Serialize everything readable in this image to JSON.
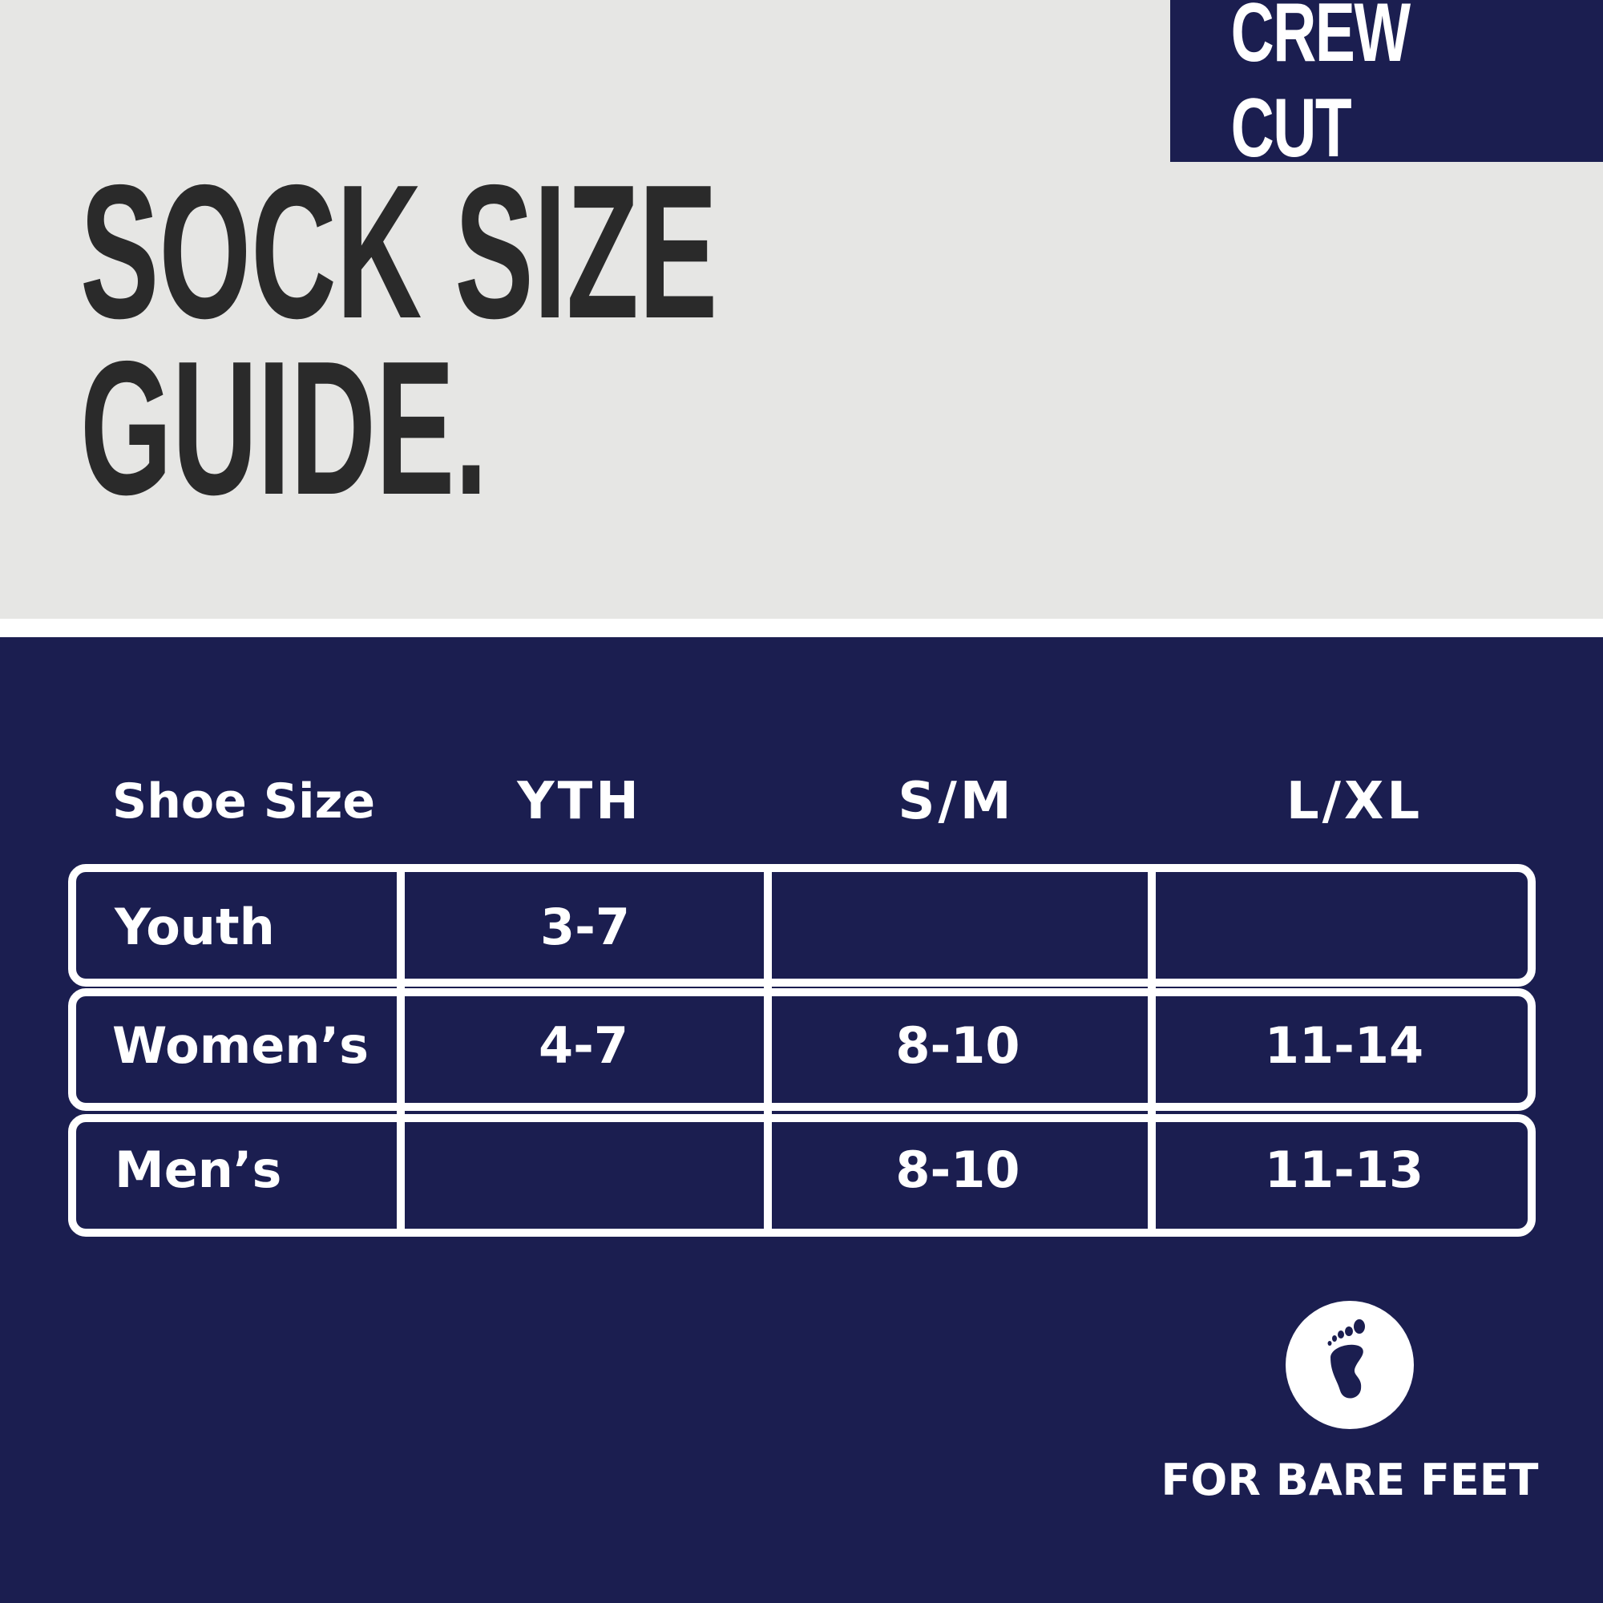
{
  "brand": "CREW CUT",
  "title": {
    "line1": "SOCK SIZE",
    "line2": "GUIDE."
  },
  "table": {
    "header": [
      "Shoe Size",
      "YTH",
      "S/M",
      "L/XL"
    ],
    "rows": [
      {
        "label": "Youth",
        "cells": [
          "3-7",
          "",
          ""
        ]
      },
      {
        "label": "Women’s",
        "cells": [
          "4-7",
          "8-10",
          "11-14"
        ]
      },
      {
        "label": "Men’s",
        "cells": [
          "",
          "8-10",
          "11-13"
        ]
      }
    ]
  },
  "badge": {
    "icon": "bare-foot-icon",
    "label": "FOR BARE FEET"
  },
  "colors": {
    "navy": "#1b1e50",
    "light": "#e6e6e4",
    "title": "#2a2a2a"
  }
}
